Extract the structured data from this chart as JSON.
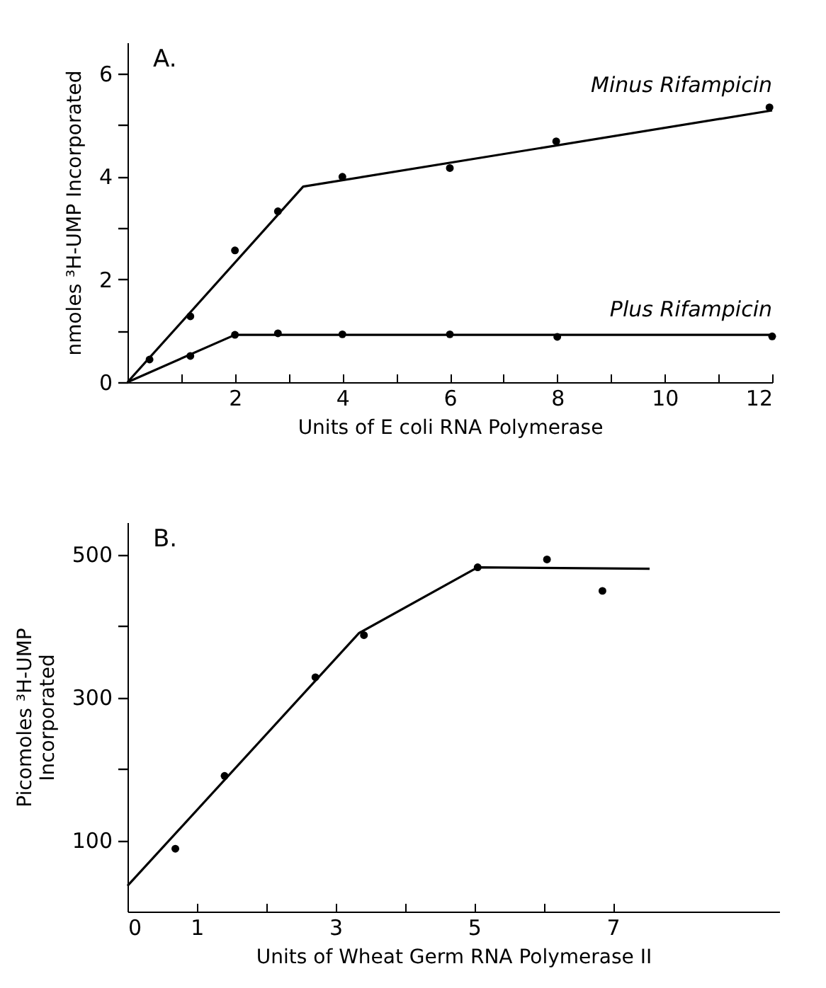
{
  "chart_data": [
    {
      "type": "scatter",
      "title": "A.",
      "xlabel": "Units of E coli RNA Polymerase",
      "ylabel": "nmoles ³H-UMP Incorporated",
      "xlim": [
        0,
        12
      ],
      "ylim": [
        0,
        6.6
      ],
      "xticks": [
        {
          "value": 1,
          "label": null
        },
        2,
        {
          "value": 3,
          "label": null
        },
        4,
        {
          "value": 5,
          "label": null
        },
        6,
        {
          "value": 7,
          "label": null
        },
        8,
        {
          "value": 9,
          "label": null
        },
        10,
        {
          "value": 11,
          "label": null
        },
        12
      ],
      "yticks": [
        0,
        {
          "value": 1,
          "label": null
        },
        2,
        {
          "value": 3,
          "label": null
        },
        4,
        {
          "value": 5,
          "label": null
        },
        6
      ],
      "grid": false,
      "series": [
        {
          "type": "scatter",
          "marker": "circle",
          "color": "#000000",
          "x": [
            0.41,
            1.17,
            2.0,
            2.8,
            4.0,
            6.0,
            7.98,
            11.95
          ],
          "values": [
            0.44,
            1.28,
            2.56,
            3.32,
            3.99,
            4.16,
            4.68,
            5.34
          ]
        },
        {
          "type": "line",
          "name": "Minus Rifampicin",
          "color": "#000000",
          "x": [
            0,
            3.27,
            12
          ],
          "values": [
            0,
            3.8,
            5.28
          ]
        },
        {
          "type": "scatter",
          "marker": "circle",
          "color": "#000000",
          "x": [
            1.17,
            2.0,
            2.8,
            4.0,
            6.0,
            8.0,
            12.0
          ],
          "values": [
            0.51,
            0.92,
            0.95,
            0.93,
            0.93,
            0.88,
            0.89
          ]
        },
        {
          "type": "line",
          "name": "Plus Rifampicin",
          "color": "#000000",
          "x": [
            0,
            2.0,
            12
          ],
          "values": [
            0,
            0.92,
            0.92
          ]
        }
      ]
    },
    {
      "type": "scatter",
      "title": "B.",
      "xlabel": "Units of Wheat Germ RNA Polymerase II",
      "ylabel": "Picomoles ³H-UMP\nIncorporated",
      "xlim": [
        0,
        9.4
      ],
      "ylim": [
        0,
        545
      ],
      "xticks": [
        0,
        1,
        {
          "value": 2,
          "label": null
        },
        3,
        {
          "value": 4,
          "label": null
        },
        5,
        {
          "value": 6,
          "label": null
        },
        7
      ],
      "yticks": [
        100,
        {
          "value": 200,
          "label": null
        },
        300,
        {
          "value": 400,
          "label": null
        },
        500
      ],
      "grid": false,
      "series": [
        {
          "type": "scatter",
          "marker": "circle",
          "color": "#000000",
          "x": [
            0.69,
            1.4,
            2.71,
            3.41,
            5.05,
            6.05,
            6.85
          ],
          "values": [
            88,
            190,
            328,
            387,
            482,
            493,
            449
          ]
        },
        {
          "type": "line",
          "color": "#000000",
          "x": [
            0,
            3.34,
            5.05,
            7.53
          ],
          "values": [
            36,
            390,
            482,
            480
          ]
        }
      ]
    }
  ]
}
